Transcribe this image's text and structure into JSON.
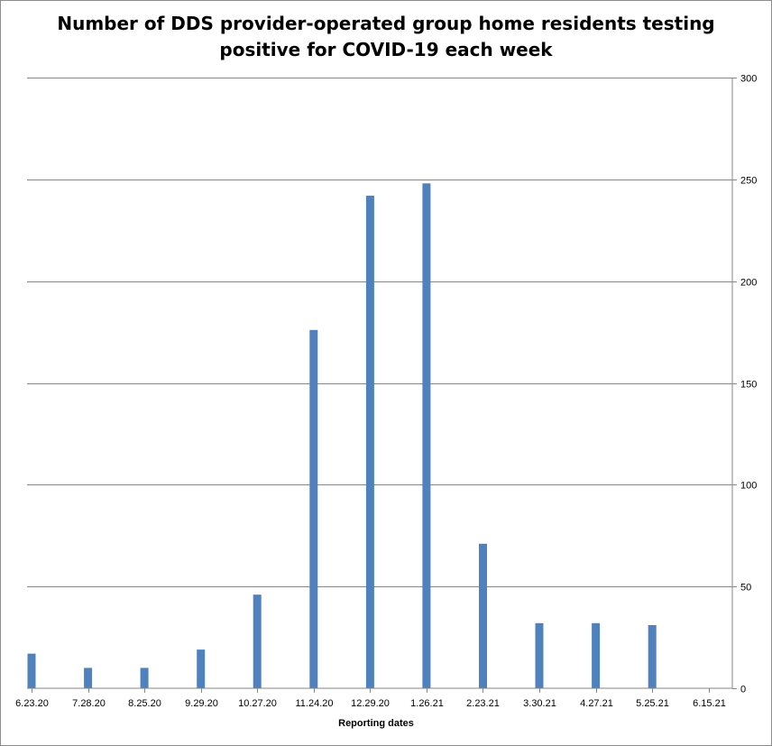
{
  "chart_data": {
    "type": "bar",
    "title_line1": "Number of DDS provider-operated group home residents testing",
    "title_line2": "positive for COVID-19 each week",
    "xlabel": "Reporting dates",
    "ylabel": "",
    "ylim": [
      0,
      300
    ],
    "y_axis_side": "right",
    "grid": true,
    "legend": "none",
    "bar_color": "#4F81BD",
    "y_ticks": [
      "0",
      "50",
      "100",
      "150",
      "200",
      "250",
      "300"
    ],
    "x_tick_labels": [
      "6.23.20",
      "7.28.20",
      "8.25.20",
      "9.29.20",
      "10.27.20",
      "11.24.20",
      "12.29.20",
      "1.26.21",
      "2.23.21",
      "3.30.21",
      "4.27.21",
      "5.25.21",
      "6.15.21"
    ],
    "categories": [
      "6.23.20",
      "7.28.20",
      "8.25.20",
      "9.29.20",
      "10.27.20",
      "11.24.20",
      "12.29.20",
      "1.26.21",
      "2.23.21",
      "3.30.21",
      "4.27.21",
      "5.25.21",
      "6.15.21"
    ],
    "values": [
      17,
      10,
      10,
      19,
      46,
      176,
      242,
      248,
      71,
      32,
      32,
      31,
      0
    ]
  }
}
